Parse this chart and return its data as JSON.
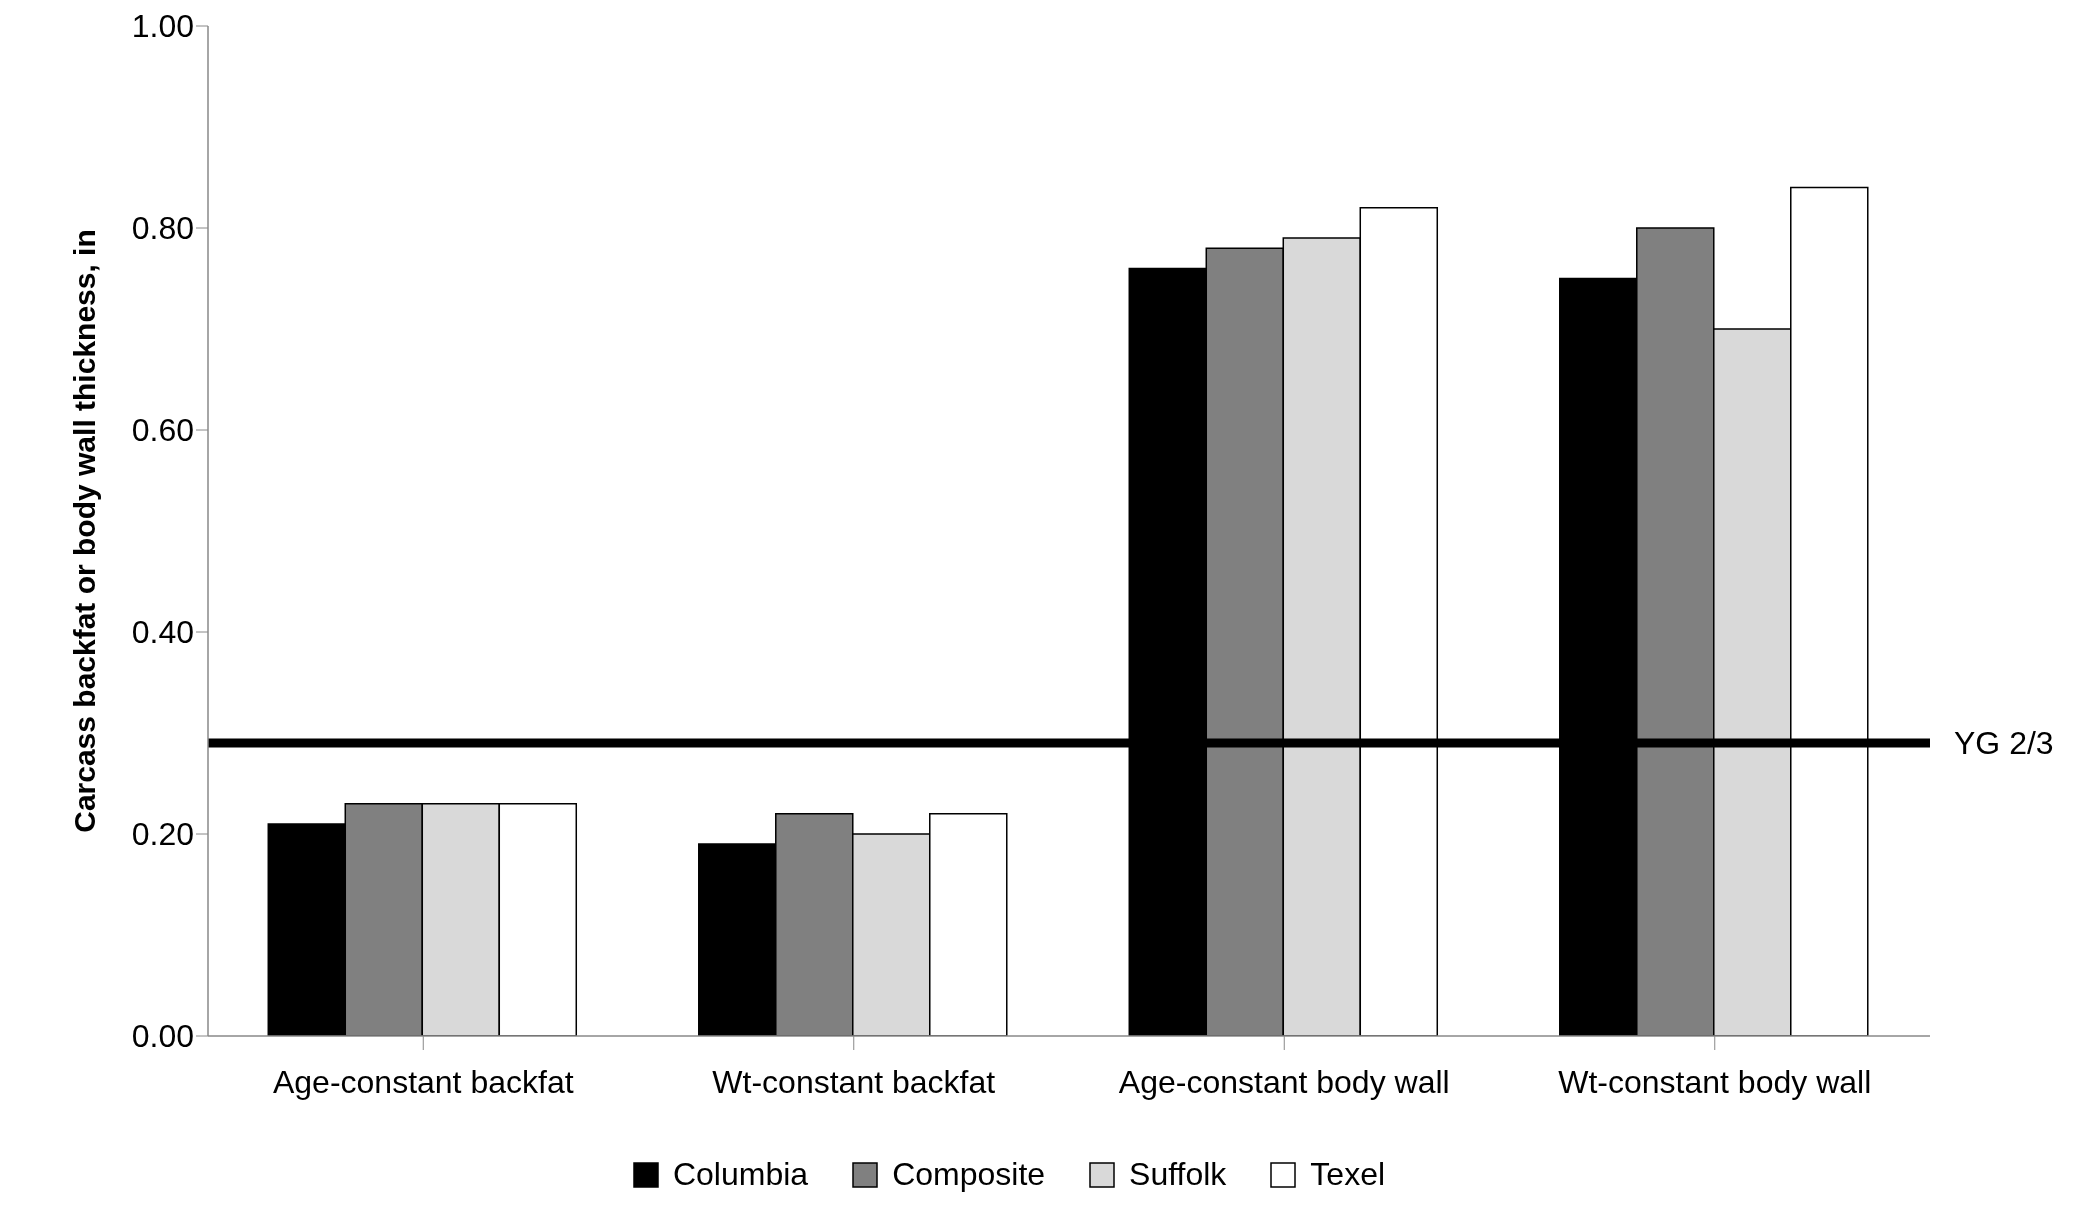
{
  "chart_data": {
    "type": "bar",
    "ylabel": "Carcass backfat or body wall thickness, in",
    "categories": [
      "Age-constant backfat",
      "Wt-constant backfat",
      "Age-constant body wall",
      "Wt-constant body wall"
    ],
    "series": [
      {
        "name": "Columbia",
        "color": "#000000",
        "values": [
          0.21,
          0.19,
          0.76,
          0.75
        ]
      },
      {
        "name": "Composite",
        "color": "#808080",
        "values": [
          0.23,
          0.22,
          0.78,
          0.8
        ]
      },
      {
        "name": "Suffolk",
        "color": "#d9d9d9",
        "values": [
          0.23,
          0.2,
          0.79,
          0.7
        ]
      },
      {
        "name": "Texel",
        "color": "#ffffff",
        "values": [
          0.23,
          0.22,
          0.82,
          0.84
        ]
      }
    ],
    "ylim": [
      0,
      1
    ],
    "yticks": [
      {
        "value": 0,
        "label": "0.00"
      },
      {
        "value": 0.2,
        "label": "0.20"
      },
      {
        "value": 0.4,
        "label": "0.40"
      },
      {
        "value": 0.6,
        "label": "0.60"
      },
      {
        "value": 0.8,
        "label": "0.80"
      },
      {
        "value": 1,
        "label": "1.00"
      }
    ],
    "ref_lines": [
      {
        "axis": "y",
        "value": 0.29,
        "label": "YG 2/3",
        "color": "#000000"
      }
    ],
    "grid": false,
    "legend": "bottom"
  }
}
